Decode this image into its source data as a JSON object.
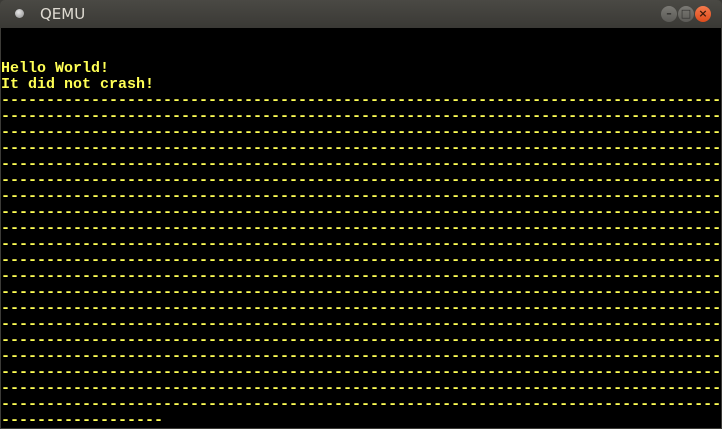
{
  "window": {
    "title": "QEMU",
    "controls": {
      "minimize": "–",
      "maximize": "□",
      "close": "×"
    },
    "close_color": "#e8572a"
  },
  "screen": {
    "text_color": "#ffff55",
    "lines": [
      "",
      "",
      "Hello World!",
      "It did not crash!",
      "--------------------------------------------------------------------------------",
      "--------------------------------------------------------------------------------",
      "--------------------------------------------------------------------------------",
      "--------------------------------------------------------------------------------",
      "--------------------------------------------------------------------------------",
      "--------------------------------------------------------------------------------",
      "--------------------------------------------------------------------------------",
      "--------------------------------------------------------------------------------",
      "--------------------------------------------------------------------------------",
      "--------------------------------------------------------------------------------",
      "--------------------------------------------------------------------------------",
      "--------------------------------------------------------------------------------",
      "--------------------------------------------------------------------------------",
      "--------------------------------------------------------------------------------",
      "--------------------------------------------------------------------------------",
      "--------------------------------------------------------------------------------",
      "--------------------------------------------------------------------------------",
      "--------------------------------------------------------------------------------",
      "--------------------------------------------------------------------------------",
      "--------------------------------------------------------------------------------",
      "------------------"
    ]
  }
}
